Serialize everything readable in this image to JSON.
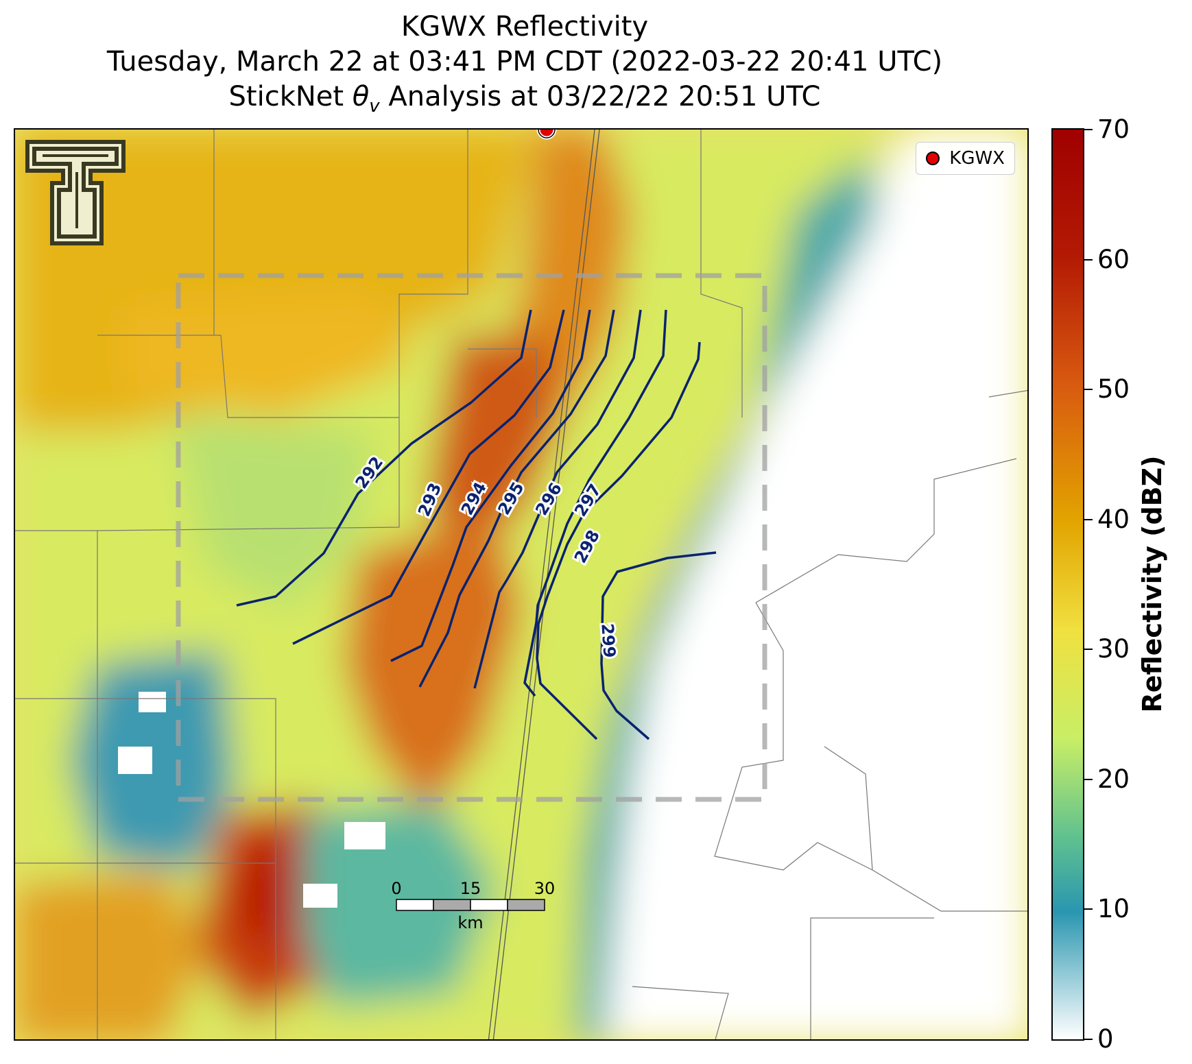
{
  "title": {
    "line1": "KGWX Reflectivity",
    "line2": "Tuesday, March 22 at 03:41 PM CDT (2022-03-22 20:41 UTC)",
    "line3_prefix": "StickNet ",
    "line3_symbol": "θ",
    "line3_sub": "v",
    "line3_suffix": " Analysis at 03/22/22 20:51 UTC"
  },
  "legend": {
    "label": "KGWX",
    "marker_color": "#e00000"
  },
  "colorbar": {
    "label": "Reflectivity (dBZ)",
    "ticks": [
      "0",
      "10",
      "20",
      "30",
      "40",
      "50",
      "60",
      "70"
    ],
    "range": [
      0,
      70
    ]
  },
  "contours": {
    "color": "#0a2370",
    "labels": [
      "292",
      "293",
      "294",
      "295",
      "296",
      "297",
      "298",
      "299"
    ]
  },
  "scalebar": {
    "ticks": [
      "0",
      "15",
      "30"
    ],
    "unit": "km"
  },
  "logo": {
    "name": "texas-tech-double-t-logo"
  }
}
